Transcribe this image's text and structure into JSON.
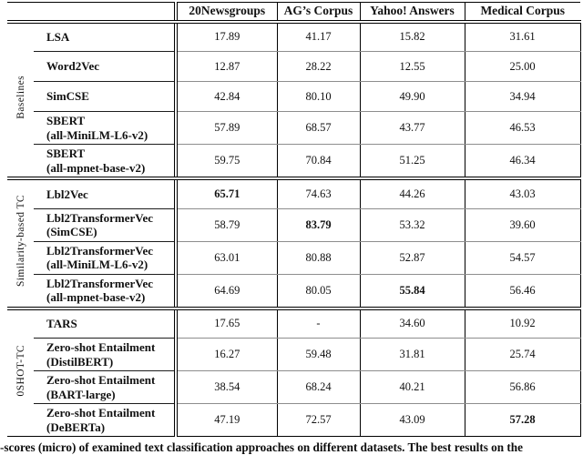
{
  "table": {
    "columns": [
      "20Newsgroups",
      "AG’s Corpus",
      "Yahoo! Answers",
      "Medical Corpus"
    ],
    "groups": [
      {
        "label": "Baselines",
        "rows": [
          {
            "name": "LSA",
            "values": [
              "17.89",
              "41.17",
              "15.82",
              "31.61"
            ]
          },
          {
            "name": "Word2Vec",
            "values": [
              "12.87",
              "28.22",
              "12.55",
              "25.00"
            ]
          },
          {
            "name": "SimCSE",
            "values": [
              "42.84",
              "80.10",
              "49.90",
              "34.94"
            ]
          },
          {
            "name": "SBERT",
            "sub": "(all-MiniLM-L6-v2)",
            "values": [
              "57.89",
              "68.57",
              "43.77",
              "46.53"
            ]
          },
          {
            "name": "SBERT",
            "sub": "(all-mpnet-base-v2)",
            "values": [
              "59.75",
              "70.84",
              "51.25",
              "46.34"
            ]
          }
        ]
      },
      {
        "label": "Similarity-based TC",
        "rows": [
          {
            "name": "Lbl2Vec",
            "values": [
              "65.71",
              "74.63",
              "44.26",
              "43.03"
            ],
            "bold": [
              true,
              false,
              false,
              false
            ]
          },
          {
            "name": "Lbl2TransformerVec",
            "sub": "(SimCSE)",
            "values": [
              "58.79",
              "83.79",
              "53.32",
              "39.60"
            ],
            "bold": [
              false,
              true,
              false,
              false
            ]
          },
          {
            "name": "Lbl2TransformerVec",
            "sub": "(all-MiniLM-L6-v2)",
            "values": [
              "63.01",
              "80.88",
              "52.87",
              "54.57"
            ]
          },
          {
            "name": "Lbl2TransformerVec",
            "sub": "(all-mpnet-base-v2)",
            "values": [
              "64.69",
              "80.05",
              "55.84",
              "56.46"
            ],
            "bold": [
              false,
              false,
              true,
              false
            ]
          }
        ]
      },
      {
        "label": "0SHOT-TC",
        "rows": [
          {
            "name": "TARS",
            "values": [
              "17.65",
              "-",
              "34.60",
              "10.92"
            ]
          },
          {
            "name": "Zero-shot Entailment",
            "sub": "(DistilBERT)",
            "values": [
              "16.27",
              "59.48",
              "31.81",
              "25.74"
            ]
          },
          {
            "name": "Zero-shot Entailment",
            "sub": "(BART-large)",
            "values": [
              "38.54",
              "68.24",
              "40.21",
              "56.86"
            ]
          },
          {
            "name": "Zero-shot Entailment",
            "sub": "(DeBERTa)",
            "values": [
              "47.19",
              "72.57",
              "43.09",
              "57.28"
            ],
            "bold": [
              false,
              false,
              false,
              true
            ]
          }
        ]
      }
    ],
    "caption": "-scores (micro) of examined text classification approaches on different datasets. The best results on the"
  },
  "colors": {
    "rule_black": "#000000",
    "rule_gray": "#8d8d8d",
    "text": "#111111",
    "background": "#ffffff"
  }
}
